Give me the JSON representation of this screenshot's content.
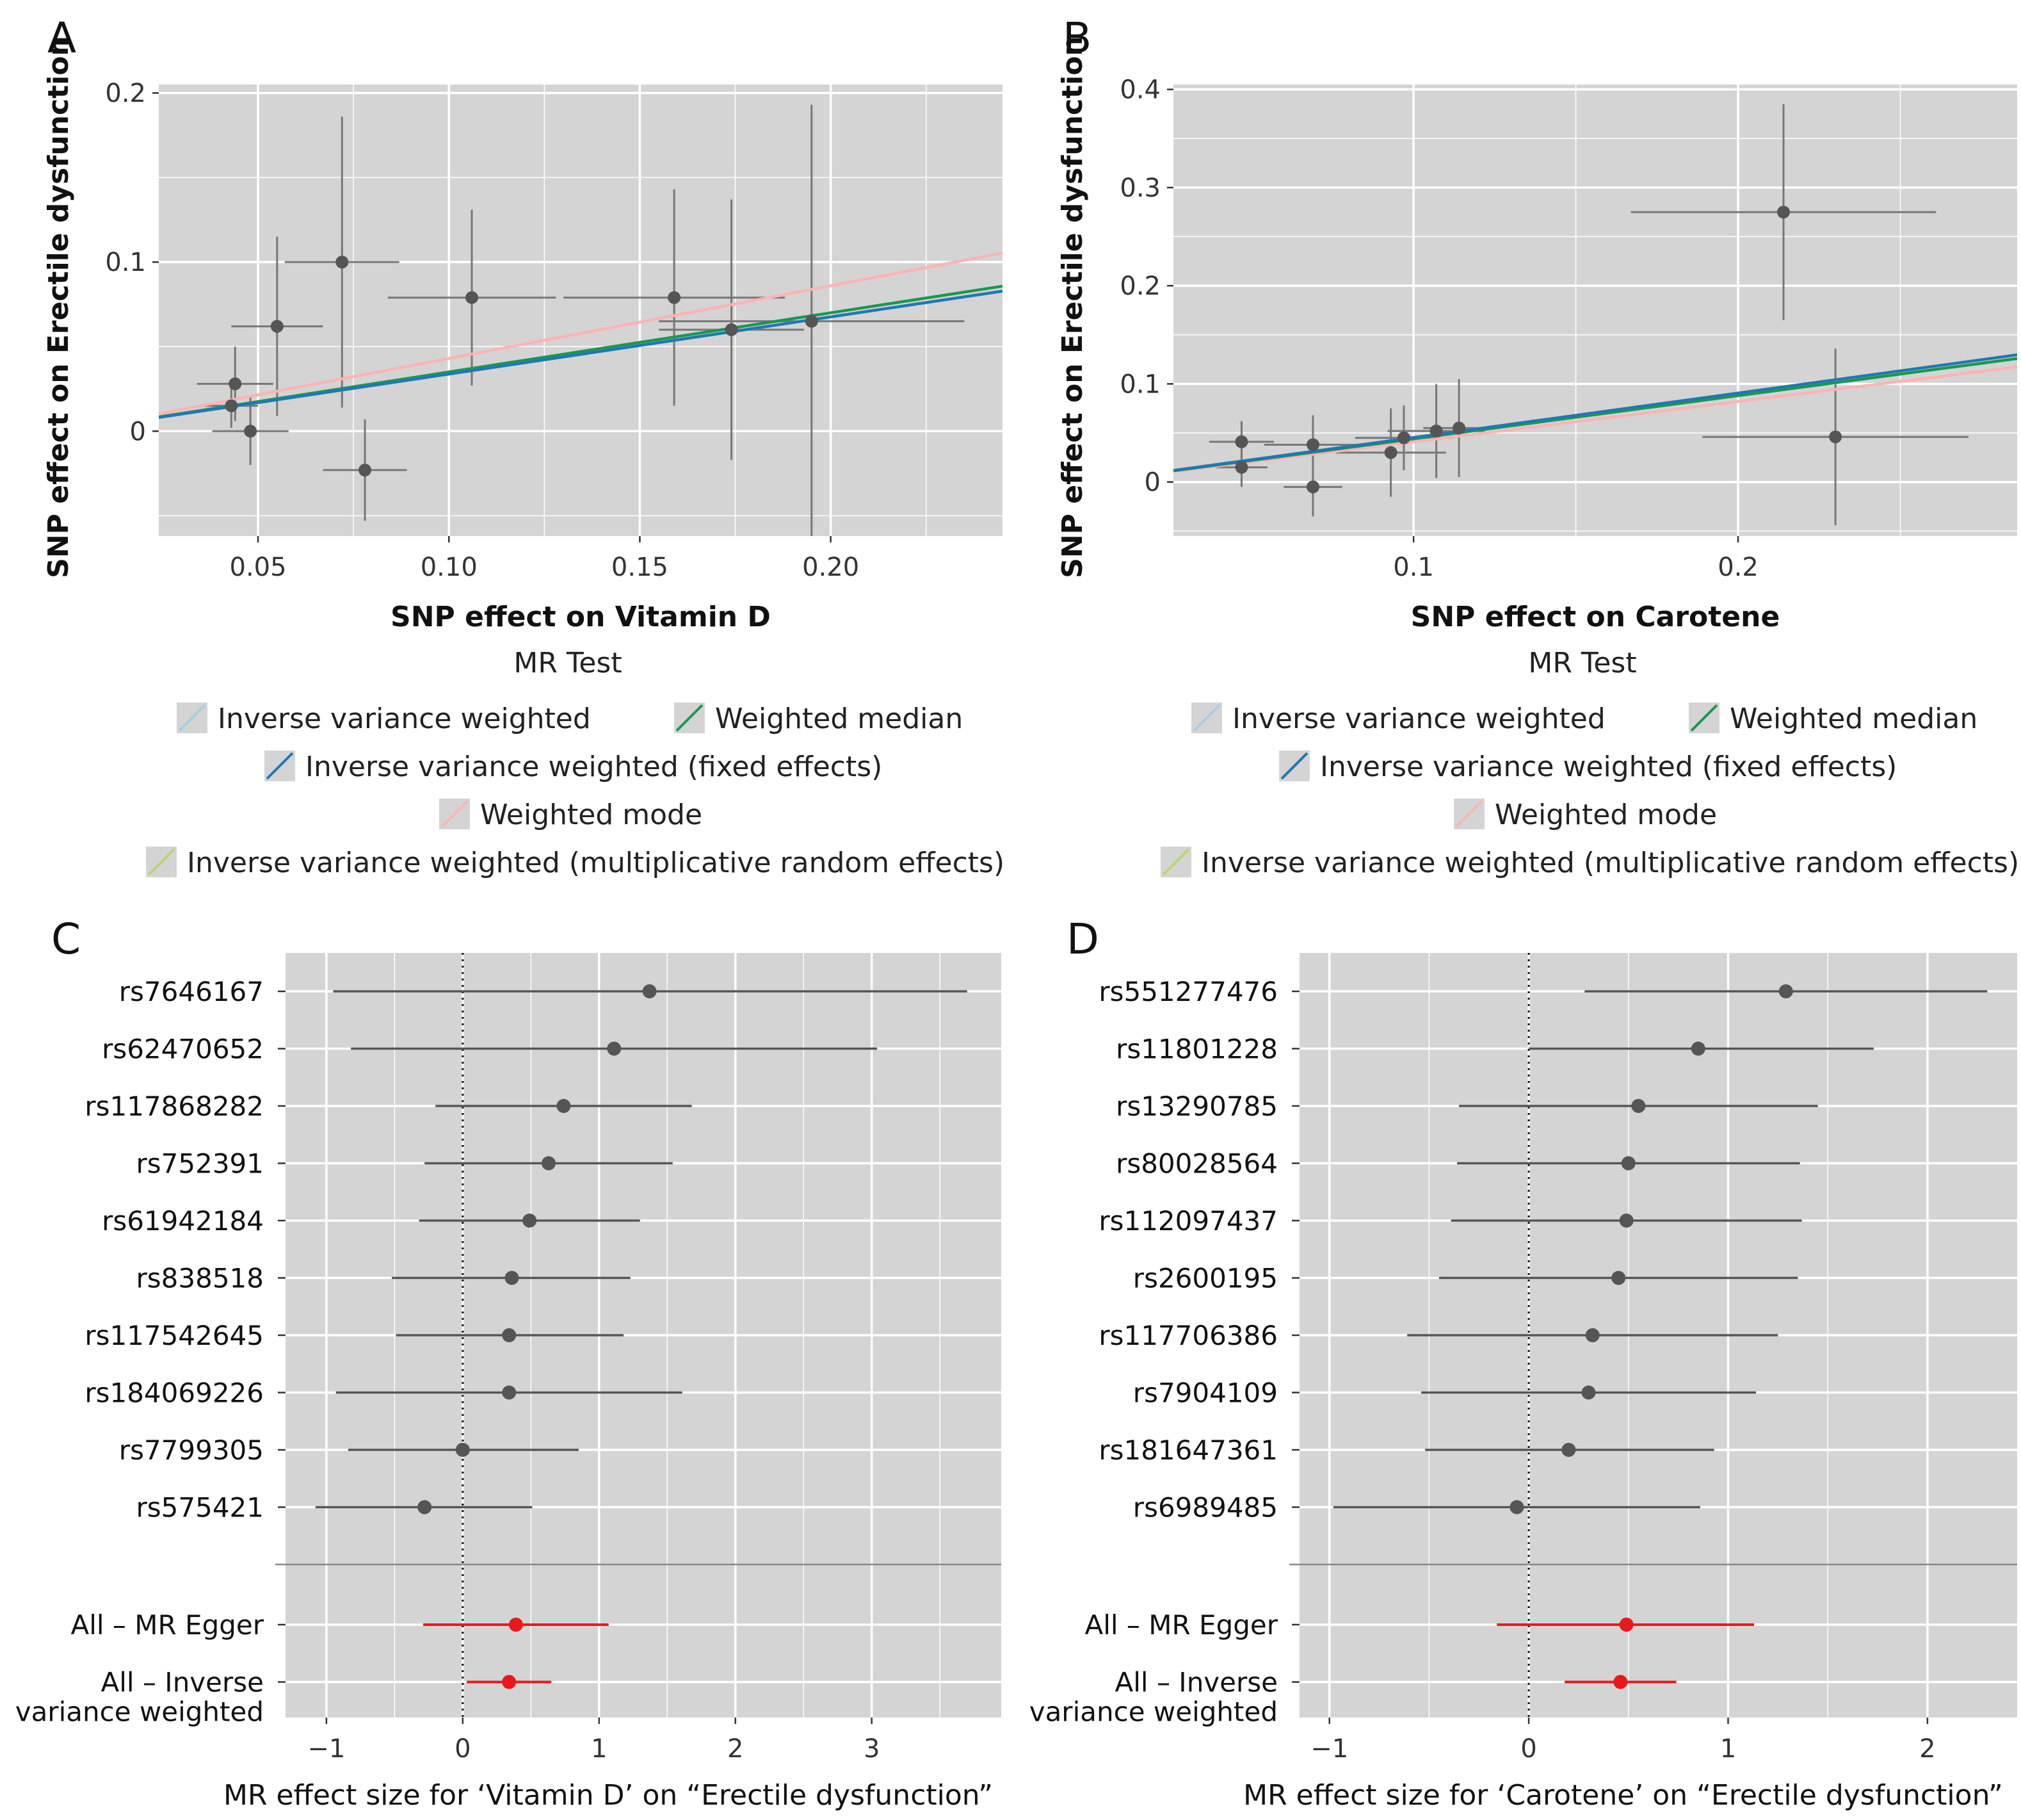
{
  "chart_data": [
    {
      "panel": "A",
      "type": "scatter",
      "xlabel": "SNP effect on Vitamin D",
      "ylabel": "SNP effect on Erectile dysfunction",
      "xlim": [
        0.024,
        0.245
      ],
      "ylim": [
        -0.062,
        0.205
      ],
      "xticks": [
        0.05,
        0.1,
        0.15,
        0.2
      ],
      "xtick_labels": [
        "0.05",
        "0.10",
        "0.15",
        "0.20"
      ],
      "yticks": [
        0,
        0.1,
        0.2
      ],
      "ytick_labels": [
        "0",
        "0.1",
        "0.2"
      ],
      "grid": true,
      "points": [
        {
          "x": 0.043,
          "y": 0.015,
          "xerr": 0.007,
          "yerr": 0.013
        },
        {
          "x": 0.044,
          "y": 0.028,
          "xerr": 0.01,
          "yerr": 0.022
        },
        {
          "x": 0.048,
          "y": 0.0,
          "xerr": 0.01,
          "yerr": 0.02
        },
        {
          "x": 0.055,
          "y": 0.062,
          "xerr": 0.012,
          "yerr": 0.053
        },
        {
          "x": 0.072,
          "y": 0.1,
          "xerr": 0.015,
          "yerr": 0.086
        },
        {
          "x": 0.078,
          "y": -0.023,
          "xerr": 0.011,
          "yerr": 0.03
        },
        {
          "x": 0.106,
          "y": 0.079,
          "xerr": 0.022,
          "yerr": 0.052
        },
        {
          "x": 0.159,
          "y": 0.079,
          "xerr": 0.029,
          "yerr": 0.064
        },
        {
          "x": 0.174,
          "y": 0.06,
          "xerr": 0.019,
          "yerr": 0.077
        },
        {
          "x": 0.195,
          "y": 0.065,
          "xerr": 0.04,
          "yerr": 0.128
        }
      ],
      "lines": [
        {
          "method": "Inverse variance weighted",
          "color": "#a6cee3",
          "slope": 0.338
        },
        {
          "method": "Weighted median",
          "color": "#1a9850",
          "slope": 0.35
        },
        {
          "method": "Inverse variance weighted (fixed effects)",
          "color": "#1f78b4",
          "slope": 0.338
        },
        {
          "method": "Weighted mode",
          "color": "#fbb4b4",
          "slope": 0.43
        },
        {
          "method": "Inverse variance weighted (multiplicative random effects)",
          "color": "#b8d86b",
          "slope": 0.338
        }
      ]
    },
    {
      "panel": "B",
      "type": "scatter",
      "xlabel": "SNP effect on Carotene",
      "ylabel": "SNP effect on Erectile dysfunction",
      "xlim": [
        0.026,
        0.286
      ],
      "ylim": [
        -0.055,
        0.405
      ],
      "xticks": [
        0.1,
        0.2
      ],
      "xtick_labels": [
        "0.1",
        "0.2"
      ],
      "yticks": [
        0,
        0.1,
        0.2,
        0.3,
        0.4
      ],
      "ytick_labels": [
        "0",
        "0.1",
        "0.2",
        "0.3",
        "0.4"
      ],
      "grid": true,
      "points": [
        {
          "x": 0.047,
          "y": 0.041,
          "xerr": 0.01,
          "yerr": 0.021
        },
        {
          "x": 0.047,
          "y": 0.015,
          "xerr": 0.008,
          "yerr": 0.02
        },
        {
          "x": 0.069,
          "y": 0.038,
          "xerr": 0.015,
          "yerr": 0.03
        },
        {
          "x": 0.069,
          "y": -0.005,
          "xerr": 0.009,
          "yerr": 0.03
        },
        {
          "x": 0.093,
          "y": 0.03,
          "xerr": 0.017,
          "yerr": 0.045
        },
        {
          "x": 0.097,
          "y": 0.045,
          "xerr": 0.015,
          "yerr": 0.033
        },
        {
          "x": 0.107,
          "y": 0.052,
          "xerr": 0.015,
          "yerr": 0.048
        },
        {
          "x": 0.114,
          "y": 0.055,
          "xerr": 0.011,
          "yerr": 0.05
        },
        {
          "x": 0.214,
          "y": 0.275,
          "xerr": 0.047,
          "yerr": 0.11
        },
        {
          "x": 0.23,
          "y": 0.046,
          "xerr": 0.041,
          "yerr": 0.09
        }
      ],
      "lines": [
        {
          "method": "Inverse variance weighted",
          "color": "#a6cee3",
          "slope": 0.453
        },
        {
          "method": "Weighted median",
          "color": "#1a9850",
          "slope": 0.44
        },
        {
          "method": "Inverse variance weighted (fixed effects)",
          "color": "#1f78b4",
          "slope": 0.453
        },
        {
          "method": "Weighted mode",
          "color": "#fbb4b4",
          "slope": 0.41
        },
        {
          "method": "Inverse variance weighted (multiplicative random effects)",
          "color": "#b8d86b",
          "slope": 0.453
        }
      ]
    },
    {
      "panel": "C",
      "type": "forest",
      "xlabel": "MR effect size for ‘Vitamin D’ on “Erectile dysfunction”",
      "xlim": [
        -1.3,
        3.95
      ],
      "xticks": [
        -1,
        0,
        1,
        2,
        3
      ],
      "xtick_labels": [
        "−1",
        "0",
        "1",
        "2",
        "3"
      ],
      "grid": true,
      "snps": [
        {
          "label": "rs7646167",
          "est": 1.37,
          "lo": -0.95,
          "hi": 3.7
        },
        {
          "label": "rs62470652",
          "est": 1.11,
          "lo": -0.82,
          "hi": 3.04
        },
        {
          "label": "rs117868282",
          "est": 0.74,
          "lo": -0.2,
          "hi": 1.68
        },
        {
          "label": "rs752391",
          "est": 0.63,
          "lo": -0.28,
          "hi": 1.54
        },
        {
          "label": "rs61942184",
          "est": 0.49,
          "lo": -0.32,
          "hi": 1.3
        },
        {
          "label": "rs838518",
          "est": 0.36,
          "lo": -0.52,
          "hi": 1.23
        },
        {
          "label": "rs117542645",
          "est": 0.34,
          "lo": -0.49,
          "hi": 1.18
        },
        {
          "label": "rs184069226",
          "est": 0.34,
          "lo": -0.93,
          "hi": 1.61
        },
        {
          "label": "rs7799305",
          "est": 0.0,
          "lo": -0.84,
          "hi": 0.85
        },
        {
          "label": "rs575421",
          "est": -0.28,
          "lo": -1.08,
          "hi": 0.51
        }
      ],
      "summary": [
        {
          "label_lines": [
            "All – MR Egger"
          ],
          "est": 0.39,
          "lo": -0.29,
          "hi": 1.07
        },
        {
          "label_lines": [
            "All – Inverse",
            "variance weighted"
          ],
          "est": 0.34,
          "lo": 0.03,
          "hi": 0.65
        }
      ]
    },
    {
      "panel": "D",
      "type": "forest",
      "xlabel": "MR effect size for ‘Carotene’ on “Erectile dysfunction”",
      "xlim": [
        -1.15,
        2.45
      ],
      "xticks": [
        -1,
        0,
        1,
        2
      ],
      "xtick_labels": [
        "−1",
        "0",
        "1",
        "2"
      ],
      "grid": true,
      "snps": [
        {
          "label": "rs551277476",
          "est": 1.29,
          "lo": 0.28,
          "hi": 2.3
        },
        {
          "label": "rs11801228",
          "est": 0.85,
          "lo": 0.0,
          "hi": 1.73
        },
        {
          "label": "rs13290785",
          "est": 0.55,
          "lo": -0.35,
          "hi": 1.45
        },
        {
          "label": "rs80028564",
          "est": 0.5,
          "lo": -0.36,
          "hi": 1.36
        },
        {
          "label": "rs112097437",
          "est": 0.49,
          "lo": -0.39,
          "hi": 1.37
        },
        {
          "label": "rs2600195",
          "est": 0.45,
          "lo": -0.45,
          "hi": 1.35
        },
        {
          "label": "rs117706386",
          "est": 0.32,
          "lo": -0.61,
          "hi": 1.25
        },
        {
          "label": "rs7904109",
          "est": 0.3,
          "lo": -0.54,
          "hi": 1.14
        },
        {
          "label": "rs181647361",
          "est": 0.2,
          "lo": -0.52,
          "hi": 0.93
        },
        {
          "label": "rs6989485",
          "est": -0.06,
          "lo": -0.98,
          "hi": 0.86
        }
      ],
      "summary": [
        {
          "label_lines": [
            "All – MR Egger"
          ],
          "est": 0.49,
          "lo": -0.16,
          "hi": 1.13
        },
        {
          "label_lines": [
            "All – Inverse",
            "variance weighted"
          ],
          "est": 0.46,
          "lo": 0.18,
          "hi": 0.74
        }
      ]
    }
  ],
  "legend": {
    "title": "MR Test",
    "entries": [
      {
        "label": "Inverse variance weighted",
        "color": "#a6cee3"
      },
      {
        "label": "Weighted median",
        "color": "#1a9850"
      },
      {
        "label": "Inverse variance weighted (fixed effects)",
        "color": "#1f78b4"
      },
      {
        "label": "Weighted mode",
        "color": "#fbb4b4"
      },
      {
        "label": "Inverse variance weighted (multiplicative random effects)",
        "color": "#b8d86b"
      }
    ]
  },
  "colors": {
    "panel_bg": "#d4d4d4",
    "gridline": "#ffffff",
    "snp_point": "#555555",
    "summary_point": "#e8191c"
  }
}
